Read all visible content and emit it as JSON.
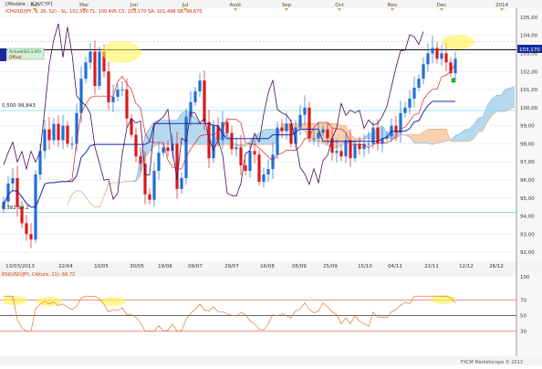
{
  "months": [
    "Avr",
    "Mai",
    "Jun",
    "Jul",
    "Août",
    "Sep",
    "Oct",
    "Nov",
    "Dec",
    "2014"
  ],
  "header_lines": [
    "[Modèle : ICH/CYP]",
    "ICHUSD/JPY, 9, 26, 52) - SL: 102,500  TL: 100,495  CS: 103,170  SA: 101,498  SB: 99,670"
  ],
  "labels": {
    "fib_5": "0,500 99,843",
    "fib_6": "0,382 94,2",
    "arrow_text": "Actuel(6/13,40)",
    "arrow_sub": "Offset",
    "current_price": "103,170",
    "rsi_header": "RSI(USD/JPY, Clôture, 21): 66,72",
    "footer": "FXCM Marketscope © 2013"
  },
  "chart_data": [
    {
      "type": "candlestick",
      "instrument": "USD/JPY",
      "indicator": "Ichimoku (9, 26, 52)",
      "ylim": [
        91.5,
        105.5
      ],
      "yticks": [
        "105,00",
        "104,00",
        "103,00",
        "102,00",
        "101,00",
        "100,00",
        "99,00",
        "98,00",
        "97,00",
        "96,00",
        "95,00",
        "94,00",
        "93,00",
        "92,00"
      ],
      "xticks": [
        "13/03/2013",
        "22/04",
        "10/05",
        "30/05",
        "19/06",
        "09/07",
        "29/07",
        "16/08",
        "05/09",
        "25/09",
        "15/10",
        "04/11",
        "22/11",
        "12/12",
        "26/12"
      ],
      "horizontal_levels": [
        103.2,
        99.84,
        94.2
      ],
      "current_price": 103.17,
      "close_series": [
        94.8,
        95.8,
        96.1,
        94.5,
        93.6,
        93.0,
        92.7,
        96.3,
        97.6,
        98.8,
        98.2,
        99.1,
        98.2,
        99.0,
        98.0,
        98.0,
        99.7,
        101.6,
        102.5,
        103.1,
        101.2,
        103.1,
        102.0,
        100.3,
        100.6,
        101.0,
        101.0,
        99.4,
        98.5,
        97.3,
        96.9,
        95.2,
        94.9,
        96.5,
        97.5,
        97.8,
        97.6,
        98.0,
        95.5,
        96.1,
        99.5,
        100.3,
        100.9,
        101.5,
        99.2,
        97.2,
        99.0,
        98.2,
        99.2,
        98.6,
        97.7,
        97.8,
        96.8,
        96.5,
        97.6,
        97.4,
        95.9,
        96.3,
        96.6,
        97.4,
        98.9,
        98.7,
        99.1,
        98.0,
        98.9,
        99.6,
        100.0,
        98.3,
        98.3,
        98.6,
        98.8,
        98.3,
        97.5,
        97.6,
        97.3,
        98.2,
        97.2,
        98.0,
        97.7,
        98.0,
        98.0,
        98.9,
        98.0,
        98.3,
        98.4,
        99.0,
        98.6,
        99.7,
        100.0,
        100.5,
        101.1,
        101.6,
        102.4,
        103.0,
        103.3,
        102.7,
        103.0,
        102.5,
        101.9,
        102.7
      ]
    },
    {
      "type": "line",
      "indicator": "RSI(21)",
      "ylim": [
        0,
        100
      ],
      "yticks": [
        "100",
        "70",
        "50",
        "30"
      ],
      "reference_levels": [
        70,
        50,
        30
      ],
      "last_value": 66.72
    }
  ]
}
